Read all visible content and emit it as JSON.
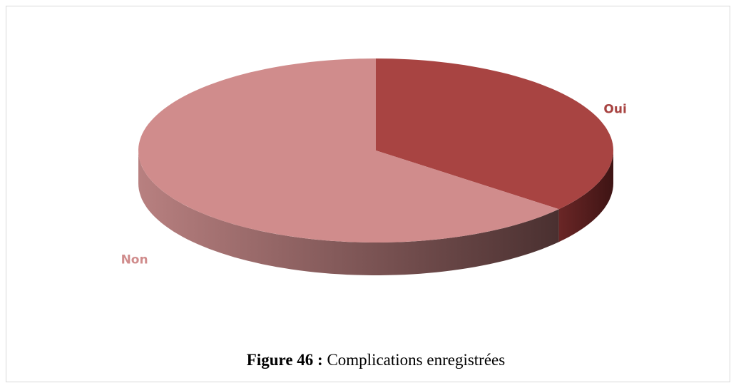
{
  "chart_data": {
    "type": "pie",
    "categories": [
      "Oui",
      "Non"
    ],
    "values": [
      36,
      64
    ],
    "colors": [
      "#a84442",
      "#d08c8c"
    ]
  },
  "caption": {
    "label": "Figure 46 :",
    "text": "Complications enregistrées"
  }
}
